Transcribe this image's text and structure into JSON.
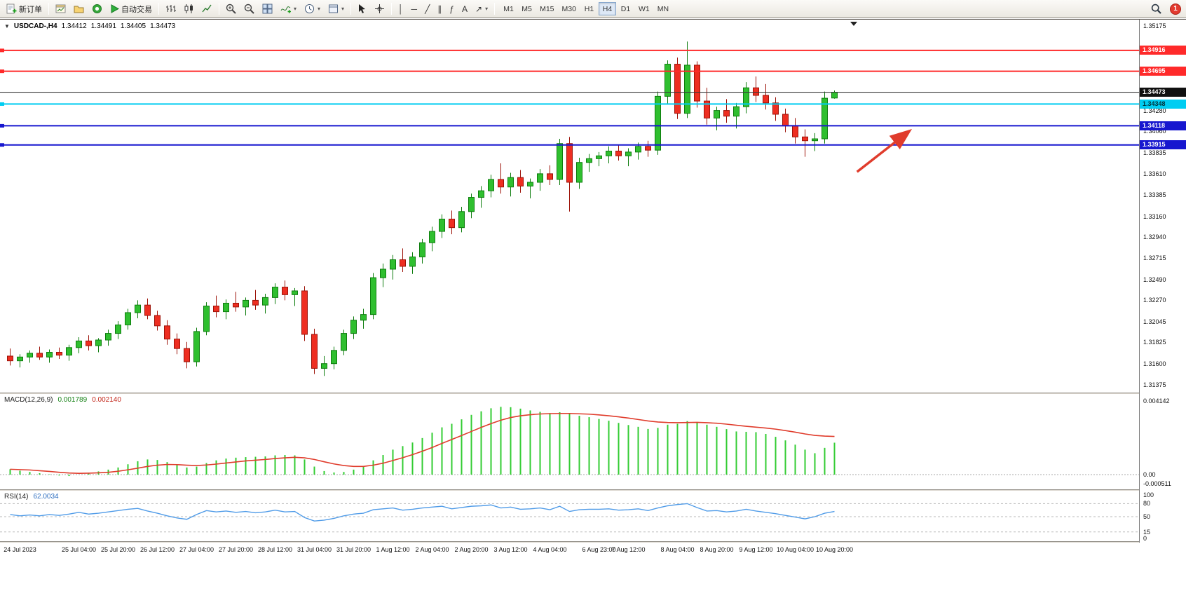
{
  "toolbar": {
    "new_order_label": "新订单",
    "autotrade_label": "自动交易",
    "timeframes": [
      "M1",
      "M5",
      "M15",
      "M30",
      "H1",
      "H4",
      "D1",
      "W1",
      "MN"
    ],
    "active_timeframe": "H4",
    "notification_count": "1",
    "glyphs": {
      "quote_dropdown": "▼",
      "dropdown": "▾",
      "vline": "│",
      "hline": "─",
      "trendline": "╱",
      "channel": "∥",
      "fibonacci": "ƒ",
      "text_tool": "A",
      "arrows_tool": "↗"
    }
  },
  "quote_bar": {
    "symbol_period": "USDCAD-,H4",
    "open": "1.34412",
    "high": "1.34491",
    "low": "1.34405",
    "close": "1.34473"
  },
  "chart_data": {
    "type": "candlestick",
    "symbol": "USDCAD-",
    "timeframe": "H4",
    "grid": false,
    "price_axis": {
      "min": 1.31375,
      "max": 1.35175,
      "ticks": [
        "1.35175",
        "1.34280",
        "1.34060",
        "1.33835",
        "1.33610",
        "1.33385",
        "1.33160",
        "1.32940",
        "1.32715",
        "1.32490",
        "1.32270",
        "1.32045",
        "1.31825",
        "1.31600",
        "1.31375"
      ]
    },
    "colors": {
      "up": "#2fbf2f",
      "up_border": "#0e7d0e",
      "down": "#ee2e21",
      "down_border": "#9c1208",
      "macd_hist": "#33cc33",
      "macd_signal": "#e03c2c",
      "rsi_line": "#4f9be8",
      "level_dash": "#b9b9b9"
    },
    "candles": [
      [
        1.3168,
        1.3176,
        1.3158,
        1.3163
      ],
      [
        1.3163,
        1.317,
        1.3156,
        1.3167
      ],
      [
        1.3167,
        1.3174,
        1.3161,
        1.3171
      ],
      [
        1.3171,
        1.3178,
        1.3164,
        1.3167
      ],
      [
        1.3167,
        1.3175,
        1.3161,
        1.3172
      ],
      [
        1.3172,
        1.3177,
        1.3165,
        1.3169
      ],
      [
        1.3169,
        1.318,
        1.3163,
        1.3177
      ],
      [
        1.3177,
        1.3188,
        1.3171,
        1.3184
      ],
      [
        1.3184,
        1.319,
        1.3174,
        1.3179
      ],
      [
        1.3179,
        1.3187,
        1.3172,
        1.3185
      ],
      [
        1.3185,
        1.3196,
        1.3179,
        1.3192
      ],
      [
        1.3192,
        1.3205,
        1.3186,
        1.3201
      ],
      [
        1.3201,
        1.3218,
        1.3196,
        1.3214
      ],
      [
        1.3214,
        1.3227,
        1.3208,
        1.3222
      ],
      [
        1.3222,
        1.3229,
        1.3207,
        1.3211
      ],
      [
        1.3211,
        1.3216,
        1.3195,
        1.32
      ],
      [
        1.32,
        1.3206,
        1.318,
        1.3186
      ],
      [
        1.3186,
        1.3192,
        1.317,
        1.3176
      ],
      [
        1.3176,
        1.3183,
        1.3155,
        1.3162
      ],
      [
        1.3162,
        1.3198,
        1.3157,
        1.3194
      ],
      [
        1.3194,
        1.3225,
        1.319,
        1.3221
      ],
      [
        1.3221,
        1.3232,
        1.3209,
        1.3215
      ],
      [
        1.3215,
        1.3228,
        1.3207,
        1.3224
      ],
      [
        1.3224,
        1.3236,
        1.3215,
        1.322
      ],
      [
        1.322,
        1.323,
        1.3211,
        1.3227
      ],
      [
        1.3227,
        1.3238,
        1.3217,
        1.3222
      ],
      [
        1.3222,
        1.3234,
        1.3213,
        1.323
      ],
      [
        1.323,
        1.3245,
        1.3223,
        1.3241
      ],
      [
        1.3241,
        1.3248,
        1.3227,
        1.3233
      ],
      [
        1.3233,
        1.324,
        1.3221,
        1.3237
      ],
      [
        1.3237,
        1.3242,
        1.3184,
        1.3191
      ],
      [
        1.3191,
        1.3197,
        1.3149,
        1.3155
      ],
      [
        1.3155,
        1.3168,
        1.3147,
        1.316
      ],
      [
        1.316,
        1.3178,
        1.3154,
        1.3174
      ],
      [
        1.3174,
        1.3196,
        1.3169,
        1.3192
      ],
      [
        1.3192,
        1.321,
        1.3186,
        1.3206
      ],
      [
        1.3206,
        1.3218,
        1.3197,
        1.3212
      ],
      [
        1.3212,
        1.3256,
        1.3207,
        1.3251
      ],
      [
        1.3251,
        1.3266,
        1.3241,
        1.326
      ],
      [
        1.326,
        1.3275,
        1.3249,
        1.327
      ],
      [
        1.327,
        1.3282,
        1.3257,
        1.3263
      ],
      [
        1.3263,
        1.3278,
        1.3255,
        1.3273
      ],
      [
        1.3273,
        1.3292,
        1.3266,
        1.3288
      ],
      [
        1.3288,
        1.3305,
        1.3279,
        1.33
      ],
      [
        1.33,
        1.3318,
        1.3293,
        1.3313
      ],
      [
        1.3313,
        1.3322,
        1.3297,
        1.3304
      ],
      [
        1.3304,
        1.3326,
        1.3299,
        1.3321
      ],
      [
        1.3321,
        1.334,
        1.3314,
        1.3336
      ],
      [
        1.3336,
        1.3348,
        1.3325,
        1.3343
      ],
      [
        1.3343,
        1.336,
        1.3336,
        1.3355
      ],
      [
        1.3355,
        1.3372,
        1.334,
        1.3347
      ],
      [
        1.3347,
        1.3362,
        1.3337,
        1.3357
      ],
      [
        1.3357,
        1.3365,
        1.3341,
        1.3348
      ],
      [
        1.3348,
        1.3356,
        1.3335,
        1.3352
      ],
      [
        1.3352,
        1.3366,
        1.3343,
        1.3361
      ],
      [
        1.3361,
        1.337,
        1.3349,
        1.3355
      ],
      [
        1.3355,
        1.3398,
        1.3349,
        1.3393
      ],
      [
        1.3393,
        1.34,
        1.3321,
        1.3352
      ],
      [
        1.3352,
        1.3378,
        1.3345,
        1.3373
      ],
      [
        1.3373,
        1.3382,
        1.3363,
        1.3377
      ],
      [
        1.3377,
        1.3384,
        1.3369,
        1.338
      ],
      [
        1.338,
        1.339,
        1.3372,
        1.3385
      ],
      [
        1.3385,
        1.3392,
        1.3375,
        1.338
      ],
      [
        1.338,
        1.3388,
        1.3369,
        1.3384
      ],
      [
        1.3384,
        1.3394,
        1.3376,
        1.339
      ],
      [
        1.339,
        1.3396,
        1.3379,
        1.3386
      ],
      [
        1.3386,
        1.3448,
        1.3381,
        1.3443
      ],
      [
        1.3443,
        1.3481,
        1.3435,
        1.3477
      ],
      [
        1.3477,
        1.3484,
        1.3419,
        1.3425
      ],
      [
        1.3425,
        1.3501,
        1.342,
        1.3476
      ],
      [
        1.3476,
        1.348,
        1.3431,
        1.3438
      ],
      [
        1.3438,
        1.3452,
        1.3413,
        1.342
      ],
      [
        1.342,
        1.3432,
        1.3407,
        1.3428
      ],
      [
        1.3428,
        1.344,
        1.3415,
        1.3422
      ],
      [
        1.3422,
        1.3436,
        1.3409,
        1.3432
      ],
      [
        1.3432,
        1.3458,
        1.3425,
        1.3452
      ],
      [
        1.3452,
        1.3464,
        1.3437,
        1.3444
      ],
      [
        1.3444,
        1.3456,
        1.3429,
        1.3436
      ],
      [
        1.3436,
        1.3442,
        1.3417,
        1.3424
      ],
      [
        1.3424,
        1.343,
        1.3405,
        1.3412
      ],
      [
        1.3412,
        1.342,
        1.3393,
        1.34
      ],
      [
        1.34,
        1.3408,
        1.3379,
        1.3396
      ],
      [
        1.3396,
        1.3404,
        1.3385,
        1.3398
      ],
      [
        1.3398,
        1.3448,
        1.3393,
        1.3441
      ],
      [
        1.34412,
        1.34491,
        1.34405,
        1.34473
      ]
    ],
    "hlines": [
      {
        "price": 1.34916,
        "label": "1.34916",
        "color": "#ff2a2a",
        "badge_fg": "#ffffff"
      },
      {
        "price": 1.34695,
        "label": "1.34695",
        "color": "#ff2a2a",
        "badge_fg": "#ffffff"
      },
      {
        "price": 1.34348,
        "label": "1.34348",
        "color": "#00cdf2",
        "badge_fg": "#00333a"
      },
      {
        "price": 1.34118,
        "label": "1.34118",
        "color": "#1717cf",
        "badge_fg": "#ffffff"
      },
      {
        "price": 1.33915,
        "label": "1.33915",
        "color": "#1717cf",
        "badge_fg": "#ffffff"
      }
    ],
    "current_price": {
      "price": 1.34473,
      "label": "1.34473",
      "line_color": "#3a3a3a",
      "badge_bg": "#101010",
      "badge_fg": "#ffffff"
    },
    "arrow": {
      "color": "#e03c2c",
      "from": {
        "bar": 86.3,
        "price": 1.3363
      },
      "to": {
        "bar": 91.6,
        "price": 1.3406
      }
    },
    "macd": {
      "name": "MACD(12,26,9)",
      "value": "0.001789",
      "signal_value": "0.002140",
      "scale": [
        {
          "label": "0.004142",
          "value": 0.004142
        },
        {
          "label": "0.00",
          "value": 0
        },
        {
          "label": "-0.000511",
          "value": -0.000511
        }
      ],
      "hist": [
        0.0003,
        0.00022,
        0.00015,
        8e-05,
        2e-05,
        -5e-05,
        -8e-05,
        0.0,
        0.0001,
        0.00018,
        0.00028,
        0.0004,
        0.00058,
        0.00075,
        0.00085,
        0.00082,
        0.0007,
        0.00055,
        0.0004,
        0.00045,
        0.00065,
        0.0008,
        0.0009,
        0.00095,
        0.00098,
        0.001,
        0.00102,
        0.00108,
        0.0011,
        0.00108,
        0.00085,
        0.00045,
        0.0002,
        0.00012,
        0.00015,
        0.00028,
        0.00045,
        0.0008,
        0.0011,
        0.0014,
        0.0016,
        0.0018,
        0.00205,
        0.00235,
        0.00265,
        0.00285,
        0.0031,
        0.00335,
        0.00355,
        0.00372,
        0.0038,
        0.00378,
        0.0037,
        0.0036,
        0.00352,
        0.00345,
        0.0035,
        0.0034,
        0.0033,
        0.00322,
        0.00312,
        0.00302,
        0.0029,
        0.00278,
        0.00268,
        0.00256,
        0.00262,
        0.0028,
        0.00285,
        0.003,
        0.00295,
        0.0028,
        0.00268,
        0.00255,
        0.00242,
        0.0024,
        0.00238,
        0.00228,
        0.00212,
        0.00192,
        0.00168,
        0.0014,
        0.0012,
        0.0015,
        0.00179
      ],
      "signal": [
        0.0003,
        0.00028,
        0.00026,
        0.00022,
        0.00018,
        0.00013,
        9e-05,
        7e-05,
        8e-05,
        0.0001,
        0.00013,
        0.00019,
        0.00027,
        0.00036,
        0.00046,
        0.00053,
        0.00057,
        0.00056,
        0.00053,
        0.00051,
        0.00054,
        0.00059,
        0.00065,
        0.00071,
        0.00077,
        0.00081,
        0.00085,
        0.0009,
        0.00094,
        0.00097,
        0.00094,
        0.00085,
        0.00072,
        0.0006,
        0.00051,
        0.00046,
        0.00046,
        0.00053,
        0.00064,
        0.00079,
        0.00095,
        0.00112,
        0.00131,
        0.00152,
        0.00175,
        0.00197,
        0.00219,
        0.00242,
        0.00265,
        0.00286,
        0.00305,
        0.0032,
        0.0033,
        0.00336,
        0.0034,
        0.00342,
        0.00343,
        0.00343,
        0.00341,
        0.00339,
        0.00335,
        0.0033,
        0.00324,
        0.00317,
        0.00309,
        0.00301,
        0.00295,
        0.00292,
        0.00291,
        0.00292,
        0.00293,
        0.00291,
        0.00288,
        0.00283,
        0.00277,
        0.00271,
        0.00266,
        0.00261,
        0.00255,
        0.00247,
        0.00238,
        0.00228,
        0.0022,
        0.00216,
        0.00214
      ]
    },
    "rsi": {
      "name": "RSI(14)",
      "value": "62.0034",
      "scale": [
        {
          "label": "100",
          "value": 100
        },
        {
          "label": "80",
          "value": 80
        },
        {
          "label": "50",
          "value": 50
        },
        {
          "label": "15",
          "value": 15
        },
        {
          "label": "0",
          "value": 0
        }
      ],
      "levels": [
        80,
        50,
        15
      ],
      "values": [
        55,
        52,
        54,
        52,
        55,
        53,
        56,
        60,
        56,
        58,
        61,
        64,
        67,
        69,
        63,
        58,
        52,
        47,
        44,
        55,
        64,
        61,
        63,
        60,
        62,
        59,
        61,
        65,
        61,
        62,
        48,
        40,
        42,
        46,
        52,
        56,
        58,
        66,
        68,
        70,
        65,
        67,
        70,
        72,
        74,
        68,
        71,
        74,
        75,
        77,
        70,
        72,
        67,
        68,
        70,
        66,
        74,
        62,
        66,
        67,
        67,
        68,
        65,
        66,
        68,
        64,
        70,
        75,
        78,
        80,
        71,
        63,
        64,
        61,
        63,
        67,
        63,
        60,
        57,
        53,
        49,
        45,
        50,
        58,
        62
      ]
    },
    "time_axis": [
      {
        "label": "24 Jul 2023",
        "bar": 1
      },
      {
        "label": "25 Jul 04:00",
        "bar": 7
      },
      {
        "label": "25 Jul 20:00",
        "bar": 11
      },
      {
        "label": "26 Jul 12:00",
        "bar": 15
      },
      {
        "label": "27 Jul 04:00",
        "bar": 19
      },
      {
        "label": "27 Jul 20:00",
        "bar": 23
      },
      {
        "label": "28 Jul 12:00",
        "bar": 27
      },
      {
        "label": "31 Jul 04:00",
        "bar": 31
      },
      {
        "label": "31 Jul 20:00",
        "bar": 35
      },
      {
        "label": "1 Aug 12:00",
        "bar": 39
      },
      {
        "label": "2 Aug 04:00",
        "bar": 43
      },
      {
        "label": "2 Aug 20:00",
        "bar": 47
      },
      {
        "label": "3 Aug 12:00",
        "bar": 51
      },
      {
        "label": "4 Aug 04:00",
        "bar": 55
      },
      {
        "label": "6 Aug 23:00",
        "bar": 60
      },
      {
        "label": "7 Aug 12:00",
        "bar": 63
      },
      {
        "label": "8 Aug 04:00",
        "bar": 68
      },
      {
        "label": "8 Aug 20:00",
        "bar": 72
      },
      {
        "label": "9 Aug 12:00",
        "bar": 76
      },
      {
        "label": "10 Aug 04:00",
        "bar": 80
      },
      {
        "label": "10 Aug 20:00",
        "bar": 84
      }
    ]
  }
}
